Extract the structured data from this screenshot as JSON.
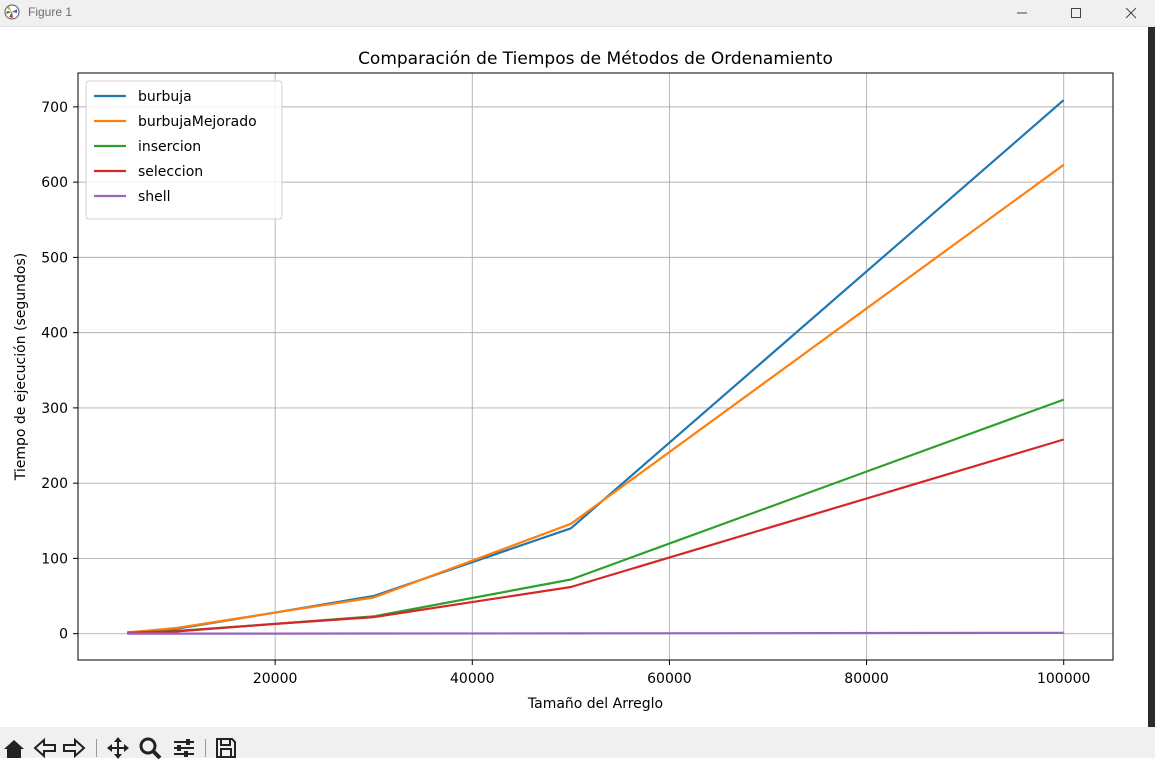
{
  "window": {
    "title": "Figure 1",
    "app_icon": "matplotlib-icon",
    "controls": [
      "minimize-icon",
      "maximize-icon",
      "close-icon"
    ]
  },
  "toolbar": {
    "buttons": [
      "home-icon",
      "back-icon",
      "forward-icon",
      "pan-icon",
      "zoom-icon",
      "configure-subplots-icon",
      "save-icon"
    ]
  },
  "chart_data": {
    "type": "line",
    "title": "Comparación de Tiempos de Métodos de Ordenamiento",
    "xlabel": "Tamaño del Arreglo",
    "ylabel": "Tiempo de ejecución (segundos)",
    "xlim": [
      0,
      105000
    ],
    "ylim": [
      -35,
      745
    ],
    "xticks": [
      20000,
      40000,
      60000,
      80000,
      100000
    ],
    "yticks": [
      0,
      100,
      200,
      300,
      400,
      500,
      600,
      700
    ],
    "grid": true,
    "legend_position": "top-left",
    "x": [
      5000,
      10000,
      20000,
      30000,
      50000,
      100000
    ],
    "series": [
      {
        "name": "burbuja",
        "color": "#1f77b4",
        "values": [
          1.5,
          6.5,
          28,
          50,
          140,
          709
        ]
      },
      {
        "name": "burbujaMejorado",
        "color": "#ff7f0e",
        "values": [
          1.5,
          7.5,
          28,
          48,
          146,
          623
        ]
      },
      {
        "name": "insercion",
        "color": "#2ca02c",
        "values": [
          1,
          3.5,
          13,
          23,
          72,
          311
        ]
      },
      {
        "name": "seleccion",
        "color": "#d62728",
        "values": [
          1,
          3,
          13,
          22,
          62,
          258
        ]
      },
      {
        "name": "shell",
        "color": "#9467bd",
        "values": [
          0.02,
          0.05,
          0.12,
          0.2,
          0.4,
          1.2
        ]
      }
    ]
  }
}
